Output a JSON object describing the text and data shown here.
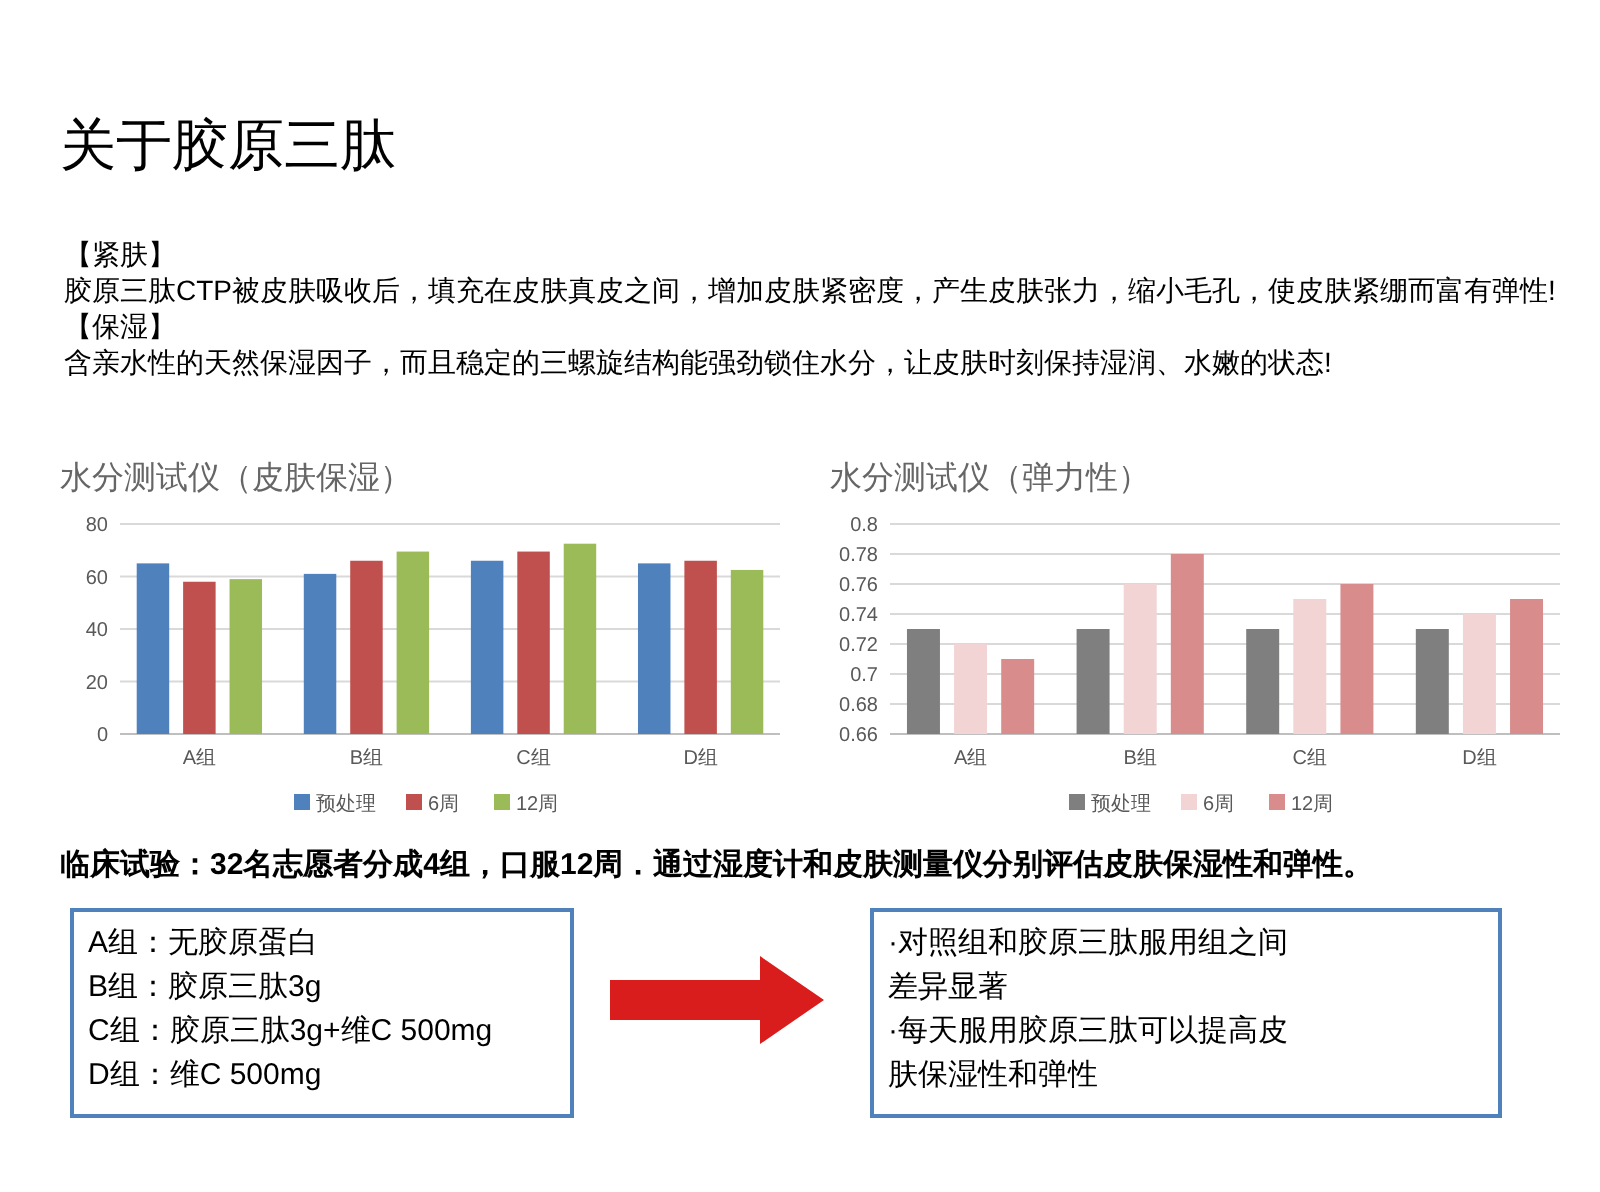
{
  "chart_data": [
    {
      "type": "other",
      "title": "关于胶原三肽",
      "annotations": [
        "【紧肤】",
        "胶原三肽CTP被皮肤吸收后，填充在皮肤真皮之间，增加皮肤紧密度，产生皮肤张力，缩小毛孔，使皮肤紧绷而富有弹性!",
        "【保湿】",
        "含亲水性的天然保湿因子，而且稳定的三螺旋结构能强劲锁住水分，让皮肤时刻保持湿润、水嫩的状态!"
      ]
    },
    {
      "type": "bar",
      "title": "水分测试仪（皮肤保湿）",
      "categories": [
        "A组",
        "B组",
        "C组",
        "D组"
      ],
      "series": [
        {
          "name": "预处理",
          "color": "#4f81bd",
          "values": [
            65,
            61,
            66,
            65
          ]
        },
        {
          "name": "6周",
          "color": "#c0504d",
          "values": [
            58,
            66,
            69.5,
            66
          ]
        },
        {
          "name": "12周",
          "color": "#9bbb59",
          "values": [
            59,
            69.5,
            72.5,
            62.5
          ]
        }
      ],
      "ylim": [
        0,
        80
      ],
      "yticks": [
        0,
        20,
        40,
        60,
        80
      ],
      "grid": "y",
      "legend": "bottom"
    },
    {
      "type": "bar",
      "title": "水分测试仪（弹力性）",
      "categories": [
        "A组",
        "B组",
        "C组",
        "D组"
      ],
      "series": [
        {
          "name": "预处理",
          "color": "#7f7f7f",
          "values": [
            0.73,
            0.73,
            0.73,
            0.73
          ]
        },
        {
          "name": "6周",
          "color": "#f2d4d4",
          "values": [
            0.72,
            0.76,
            0.75,
            0.74
          ]
        },
        {
          "name": "12周",
          "color": "#d98c8c",
          "values": [
            0.71,
            0.78,
            0.76,
            0.75
          ]
        }
      ],
      "ylim": [
        0.66,
        0.8
      ],
      "yticks": [
        0.66,
        0.68,
        0.7,
        0.72,
        0.74,
        0.76,
        0.78,
        0.8
      ],
      "grid": "y",
      "legend": "bottom"
    },
    {
      "type": "other",
      "annotations": [
        "临床试验：32名志愿者分成4组，口服12周．通过湿度计和皮肤测量仪分别评估皮肤保湿性和弹性。",
        "A组：无胶原蛋白",
        "B组：胶原三肽3g",
        "C组：胶原三肽3g+维C 500mg",
        "D组：维C 500mg",
        "·对照组和胶原三肽服用组之间",
        "差异显著",
        "·每天服用胶原三肽可以提高皮",
        "肤保湿性和弹性"
      ]
    }
  ]
}
